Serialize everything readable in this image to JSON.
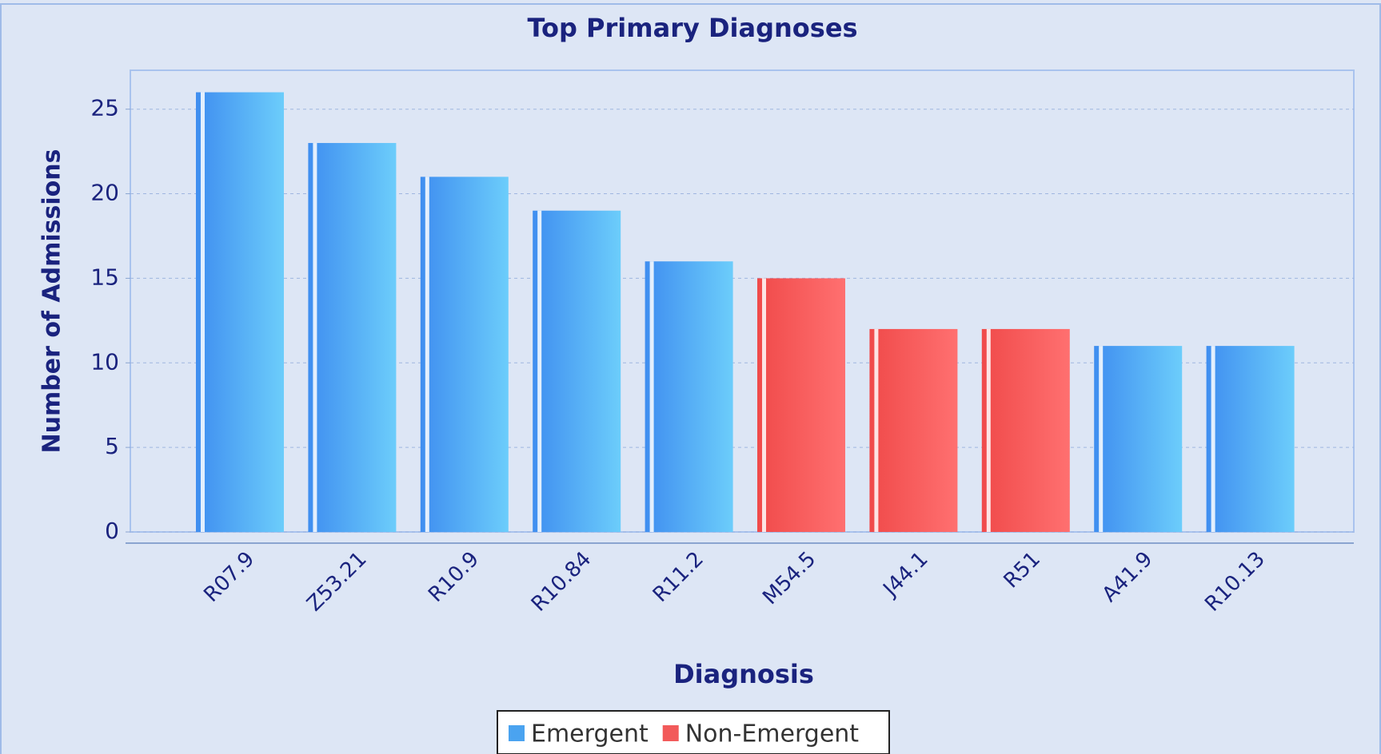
{
  "chart_data": {
    "type": "bar",
    "title": "Top Primary Diagnoses",
    "x_label": "Diagnosis",
    "y_label": "Number of Admissions",
    "categories": [
      "R07.9",
      "Z53.21",
      "R10.9",
      "R10.84",
      "R11.2",
      "M54.5",
      "J44.1",
      "R51",
      "A41.9",
      "R10.13"
    ],
    "series": [
      {
        "name": "Emergent",
        "color": "#4aa3f0",
        "values": [
          26,
          23,
          21,
          19,
          16,
          null,
          null,
          null,
          11,
          11
        ]
      },
      {
        "name": "Non-Emergent",
        "color": "#f25a5a",
        "values": [
          null,
          null,
          null,
          null,
          null,
          15,
          12,
          12,
          null,
          null
        ]
      }
    ],
    "ylim": [
      0,
      27.3
    ],
    "yticks": [
      0,
      5,
      10,
      15,
      20,
      25
    ],
    "grid": true,
    "legend": "bottom"
  }
}
